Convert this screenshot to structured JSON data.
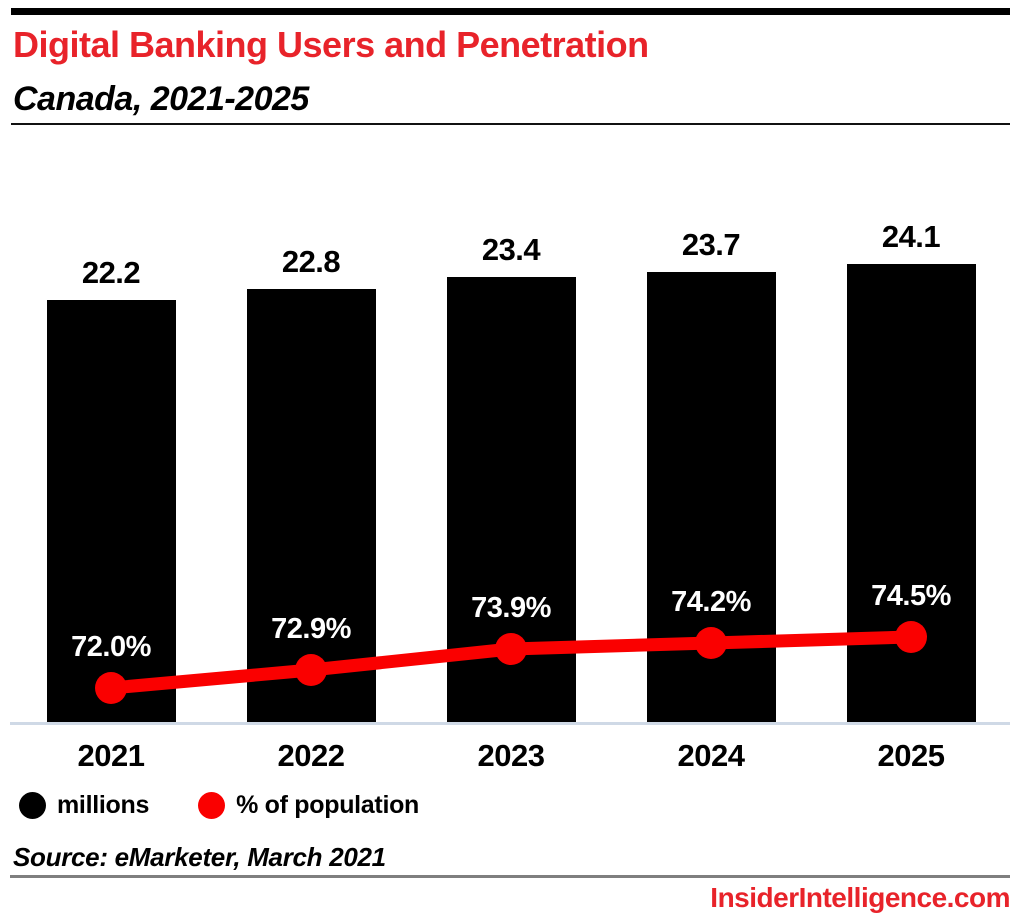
{
  "header": {
    "title": "Digital Banking Users and Penetration",
    "subtitle": "Canada, 2021-2025"
  },
  "chart_data": {
    "type": "bar",
    "subtype": "bar-with-line-overlay",
    "title": "Digital Banking Users and Penetration",
    "subtitle": "Canada, 2021-2025",
    "categories": [
      "2021",
      "2022",
      "2023",
      "2024",
      "2025"
    ],
    "series": [
      {
        "name": "millions",
        "type": "bar",
        "color": "#000000",
        "values": [
          22.2,
          22.8,
          23.4,
          23.7,
          24.1
        ],
        "value_suffix": ""
      },
      {
        "name": "% of population",
        "type": "line",
        "color": "#fa0000",
        "values": [
          72.0,
          72.9,
          73.9,
          74.2,
          74.5
        ],
        "value_suffix": "%"
      }
    ],
    "legend": [
      {
        "label": "millions",
        "color": "#000000"
      },
      {
        "label": "% of population",
        "color": "#fa0000"
      }
    ],
    "legend_position": "bottom",
    "grid": false,
    "bar_axis": {
      "min": 0
    },
    "xlabel": "",
    "ylabel": ""
  },
  "colors": {
    "accent_red": "#e8232a",
    "line_red": "#fa0000",
    "bar_black": "#000000",
    "axis_gray": "#cfd9e6"
  },
  "footer": {
    "source": "Source: eMarketer, March 2021",
    "brand": "InsiderIntelligence.com"
  }
}
